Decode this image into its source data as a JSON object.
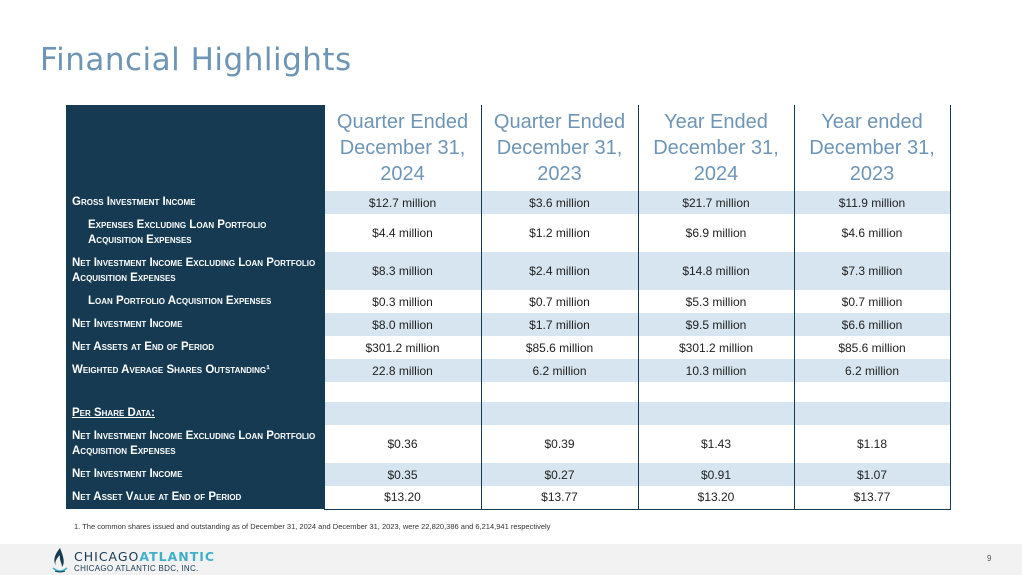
{
  "title": "Financial Highlights",
  "columns": [
    "Quarter Ended December 31, 2024",
    "Quarter Ended December 31, 2023",
    "Year Ended December 31, 2024",
    "Year ended December 31, 2023"
  ],
  "rows": [
    {
      "label": "Gross Investment Income",
      "values": [
        "$12.7 million",
        "$3.6 million",
        "$21.7 million",
        "$11.9 million"
      ]
    },
    {
      "label": "Expenses Excluding Loan Portfolio Acquisition Expenses",
      "values": [
        "$4.4 million",
        "$1.2 million",
        "$6.9 million",
        "$4.6 million"
      ]
    },
    {
      "label": "Net Investment Income Excluding Loan Portfolio Acquisition Expenses",
      "values": [
        "$8.3 million",
        "$2.4 million",
        "$14.8 million",
        "$7.3 million"
      ]
    },
    {
      "label": "Loan Portfolio Acquisition Expenses",
      "values": [
        "$0.3 million",
        "$0.7 million",
        "$5.3 million",
        "$0.7 million"
      ]
    },
    {
      "label": "Net Investment Income",
      "values": [
        "$8.0 million",
        "$1.7 million",
        "$9.5 million",
        "$6.6 million"
      ]
    },
    {
      "label": "Net Assets at End of Period",
      "values": [
        "$301.2 million",
        "$85.6 million",
        "$301.2 million",
        "$85.6 million"
      ]
    },
    {
      "label": "Weighted Average Shares Outstanding¹",
      "values": [
        "22.8 million",
        "6.2 million",
        "10.3 million",
        "6.2 million"
      ]
    },
    {
      "label": "",
      "values": [
        "",
        "",
        "",
        ""
      ]
    },
    {
      "label": "Per Share Data:",
      "values": [
        "",
        "",
        "",
        ""
      ]
    },
    {
      "label": "Net Investment Income Excluding Loan Portfolio Acquisition Expenses",
      "values": [
        "$0.36",
        "$0.39",
        "$1.43",
        "$1.18"
      ]
    },
    {
      "label": "Net Investment Income",
      "values": [
        "$0.35",
        "$0.27",
        "$0.91",
        "$1.07"
      ]
    },
    {
      "label": "Net Asset Value at End of Period",
      "values": [
        "$13.20",
        "$13.77",
        "$13.20",
        "$13.77"
      ]
    }
  ],
  "footnote": "1. The common shares issued and outstanding as of December 31, 2024 and December 31, 2023, were 22,820,386 and 6,214,941 respectively",
  "brand": {
    "name_part1": "CHICAGO",
    "name_part2": "ATLANTIC",
    "subtitle": "CHICAGO ATLANTIC BDC, INC.",
    "logo_icon": "flame-icon"
  },
  "page_number": "9",
  "colors": {
    "navy": "#163a52",
    "accent": "#6e95b5",
    "shade": "#d6e5ef",
    "teal": "#3fb0c8"
  }
}
